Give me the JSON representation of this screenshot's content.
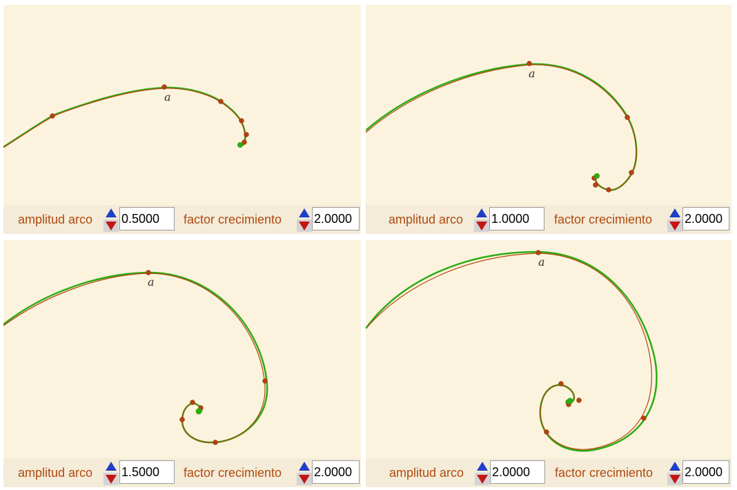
{
  "colors": {
    "background": "#fbf3de",
    "spiral_green": "#2eaa12",
    "spiral_red": "#b5410f",
    "label_orange": "#b04a10"
  },
  "panels": [
    {
      "amplitude_label": "amplitud arco",
      "amplitude_value": "0.5000",
      "growth_label": "factor crecimiento",
      "growth_value": "2.0000",
      "point_label": "a"
    },
    {
      "amplitude_label": "amplitud arco",
      "amplitude_value": "1.0000",
      "growth_label": "factor crecimiento",
      "growth_value": "2.0000",
      "point_label": "a"
    },
    {
      "amplitude_label": "amplitud arco",
      "amplitude_value": "1.5000",
      "growth_label": "factor crecimiento",
      "growth_value": "2.0000",
      "point_label": "a"
    },
    {
      "amplitude_label": "amplitud arco",
      "amplitude_value": "2.0000",
      "growth_label": "factor crecimiento",
      "growth_value": "2.0000",
      "point_label": "a"
    }
  ],
  "icons": {
    "up": "triangle-up-icon",
    "down": "triangle-down-icon"
  }
}
